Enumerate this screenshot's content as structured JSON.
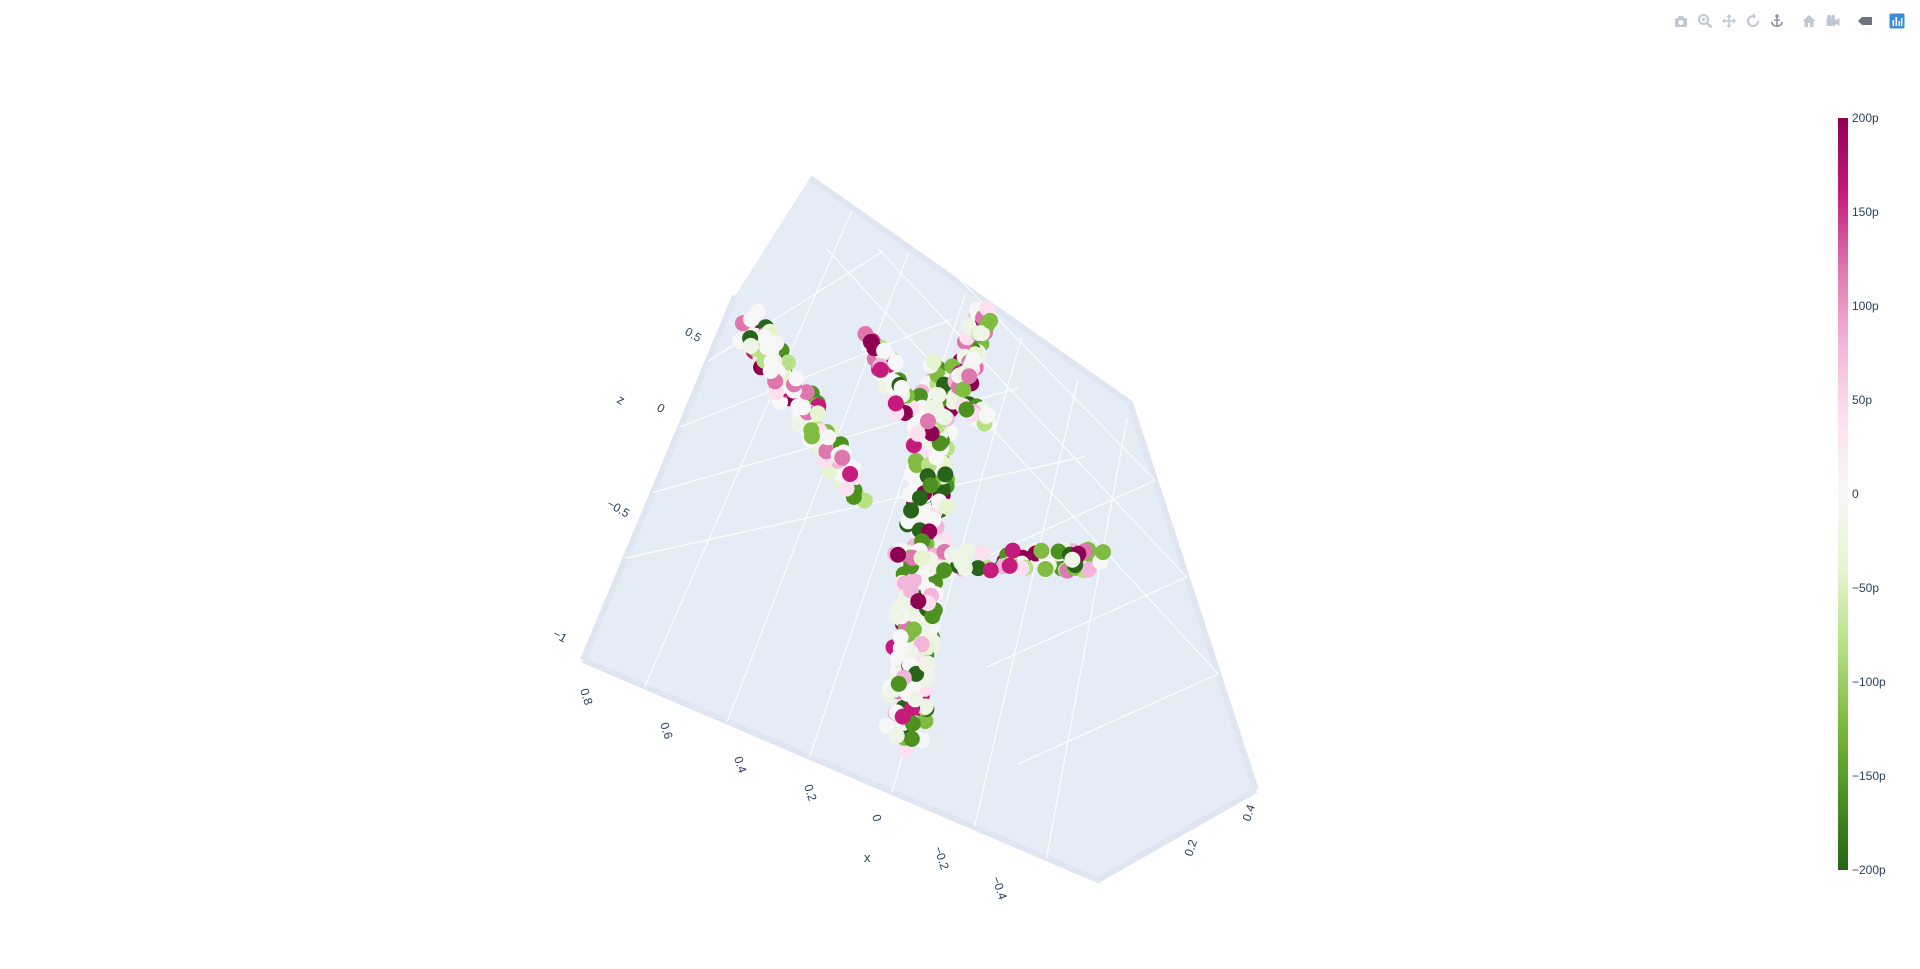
{
  "modebar": {
    "buttons": [
      {
        "name": "camera-icon",
        "color": "#bfc7d1"
      },
      {
        "name": "zoom-icon",
        "color": "#bfc7d1"
      },
      {
        "name": "pan-icon",
        "color": "#bfc7d1"
      },
      {
        "name": "orbit-icon",
        "color": "#bfc7d1"
      },
      {
        "name": "turntable-icon",
        "color": "#8c96a3"
      },
      {
        "name": "home-icon",
        "color": "#bfc7d1"
      },
      {
        "name": "camera-reset-icon",
        "color": "#bfc7d1"
      },
      {
        "name": "hover-toggle-icon",
        "color": "#6b7380"
      },
      {
        "name": "plotly-logo-icon",
        "color": "#3f8bd5"
      }
    ]
  },
  "chart_data": {
    "type": "scatter3d",
    "title": "",
    "scene": {
      "background": "#e5ecf6",
      "grid_color": "#ffffff",
      "grid": true,
      "axes": {
        "x": {
          "title": "x",
          "ticks": [
            "0.8",
            "0.6",
            "0.4",
            "0.2",
            "0",
            "−0.2",
            "−0.4"
          ]
        },
        "y": {
          "title": "",
          "ticks": [
            "0.4",
            "0.2"
          ]
        },
        "z": {
          "title": "z",
          "ticks": [
            "0.5",
            "0",
            "−0.5",
            "−1"
          ]
        }
      }
    },
    "marker": {
      "size": 8,
      "colorscale": "PiYG"
    },
    "colorbar": {
      "ticks": [
        "200p",
        "150p",
        "100p",
        "50p",
        "0",
        "−50p",
        "−100p",
        "−150p",
        "−200p"
      ],
      "range": [
        -2e-10,
        2e-10
      ],
      "colors": [
        "#8e0152",
        "#c51b7d",
        "#de77ae",
        "#f1b6da",
        "#fde0ef",
        "#f7f7f7",
        "#e6f5d0",
        "#b8e186",
        "#7fbc41",
        "#4d9221",
        "#276419"
      ]
    },
    "point_cloud_note": "airplane-shaped point cloud of several hundred markers; colors distributed across colorscale",
    "structure": {
      "fuselage": {
        "from": [
          0.05,
          -0.6
        ],
        "to": [
          0.22,
          0.3
        ]
      },
      "left_wing": {
        "from": [
          -0.22,
          0.5
        ],
        "to": [
          0.0,
          0.0
        ]
      },
      "right_wing": {
        "from": [
          0.05,
          -0.05
        ],
        "to": [
          0.42,
          0.0
        ]
      },
      "tail_left": {
        "from": [
          -0.05,
          0.4
        ],
        "to": [
          0.08,
          0.2
        ]
      },
      "tail_right": {
        "from": [
          0.25,
          0.55
        ],
        "to": [
          0.15,
          0.2
        ]
      }
    }
  }
}
